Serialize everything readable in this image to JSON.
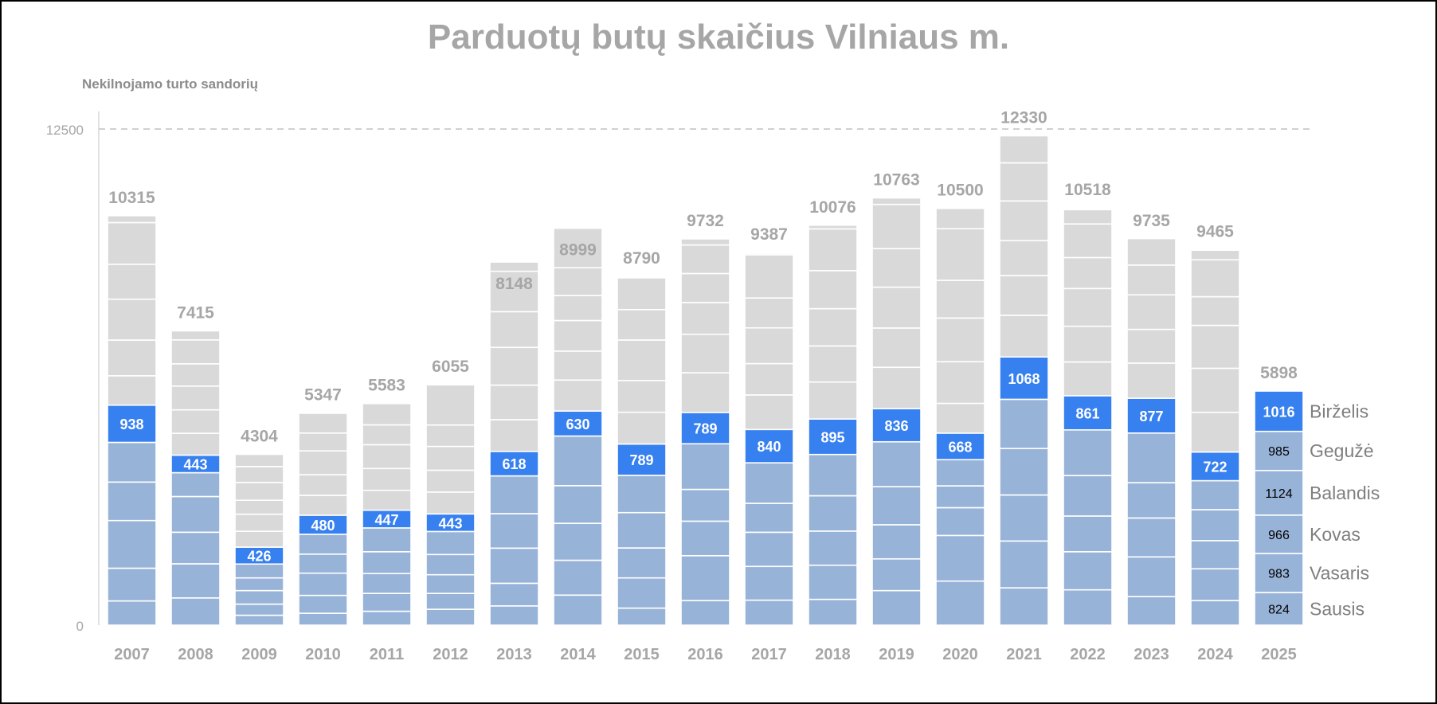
{
  "chart_data": {
    "type": "bar",
    "stacked": true,
    "title": "Parduotų butų skaičius Vilniaus m.",
    "ylabel": "Nekilnojamo turto sandorių",
    "xlabel": "",
    "ylim": [
      0,
      12500
    ],
    "yticks": [
      "0",
      "12500"
    ],
    "grid": "dashed line at 12500",
    "categories": [
      "2007",
      "2008",
      "2009",
      "2010",
      "2011",
      "2012",
      "2013",
      "2014",
      "2015",
      "2016",
      "2017",
      "2018",
      "2019",
      "2020",
      "2021",
      "2022",
      "2023",
      "2024",
      "2025"
    ],
    "totals": [
      10315,
      7415,
      4304,
      5347,
      5583,
      6055,
      8148,
      8999,
      8790,
      9732,
      9387,
      10076,
      10763,
      10500,
      12330,
      10518,
      9735,
      9465,
      5898
    ],
    "june_labels": [
      "938",
      "443",
      "426",
      "480",
      "447",
      "443",
      "618",
      "630",
      "789",
      "789",
      "840",
      "895",
      "836",
      "668",
      "1068",
      "861",
      "877",
      "722",
      "1016"
    ],
    "months_2025": [
      {
        "name": "Sausis",
        "value": 824
      },
      {
        "name": "Vasaris",
        "value": 983
      },
      {
        "name": "Kovas",
        "value": 966
      },
      {
        "name": "Balandis",
        "value": 1124
      },
      {
        "name": "Gegužė",
        "value": 985
      },
      {
        "name": "Birželis",
        "value": 1016
      }
    ],
    "monthly": [
      [
        610,
        825,
        1200,
        970,
        1000,
        938,
        740,
        900,
        1030,
        880,
        1050,
        172
      ],
      [
        686,
        860,
        795,
        900,
        600,
        443,
        550,
        590,
        600,
        560,
        603,
        228
      ],
      [
        250,
        280,
        340,
        320,
        350,
        426,
        400,
        430,
        350,
        450,
        400,
        308
      ],
      [
        300,
        450,
        560,
        480,
        500,
        480,
        500,
        520,
        600,
        450,
        500,
        7
      ],
      [
        350,
        450,
        500,
        550,
        600,
        447,
        500,
        550,
        600,
        500,
        536,
        0
      ],
      [
        400,
        400,
        470,
        510,
        580,
        443,
        550,
        550,
        600,
        540,
        1012,
        0
      ],
      [
        485,
        570,
        885,
        870,
        950,
        618,
        800,
        870,
        950,
        900,
        1017,
        233
      ],
      [
        757,
        878,
        930,
        950,
        1250,
        630,
        780,
        730,
        770,
        630,
        700,
        994
      ],
      [
        430,
        760,
        755,
        890,
        940,
        789,
        800,
        800,
        1020,
        766,
        800,
        0
      ],
      [
        620,
        1130,
        870,
        800,
        1150,
        789,
        1000,
        970,
        800,
        730,
        720,
        153
      ],
      [
        630,
        850,
        860,
        730,
        1020,
        840,
        870,
        790,
        900,
        752,
        1090,
        35
      ],
      [
        650,
        860,
        860,
        890,
        1040,
        895,
        930,
        910,
        938,
        960,
        1051,
        92
      ],
      [
        870,
        800,
        860,
        960,
        1130,
        836,
        1040,
        990,
        1030,
        970,
        1115,
        163
      ],
      [
        1110,
        1150,
        700,
        550,
        660,
        668,
        750,
        1050,
        1100,
        950,
        1300,
        512
      ],
      [
        940,
        1180,
        1160,
        1170,
        1240,
        1068,
        1050,
        1000,
        880,
        1000,
        960,
        682
      ],
      [
        890,
        960,
        900,
        1020,
        1150,
        861,
        850,
        900,
        950,
        780,
        847,
        360
      ],
      [
        720,
        1000,
        980,
        890,
        1250,
        877,
        885,
        850,
        870,
        750,
        670,
        3
      ],
      [
        620,
        800,
        710,
        780,
        730,
        722,
        1000,
        1110,
        1080,
        723,
        930,
        240
      ],
      [
        824,
        983,
        966,
        1124,
        985,
        1016
      ]
    ],
    "colors": {
      "past_months": "#98b3d8",
      "june": "#3780f0",
      "rest_of_year": "#d9d9d9",
      "total_label": "#a6a6a6",
      "axis_text": "#a6a6a6",
      "month_label": "#7f7f7f",
      "grid": "#c0c0c0",
      "axis_line": "#d9d9d9"
    }
  }
}
